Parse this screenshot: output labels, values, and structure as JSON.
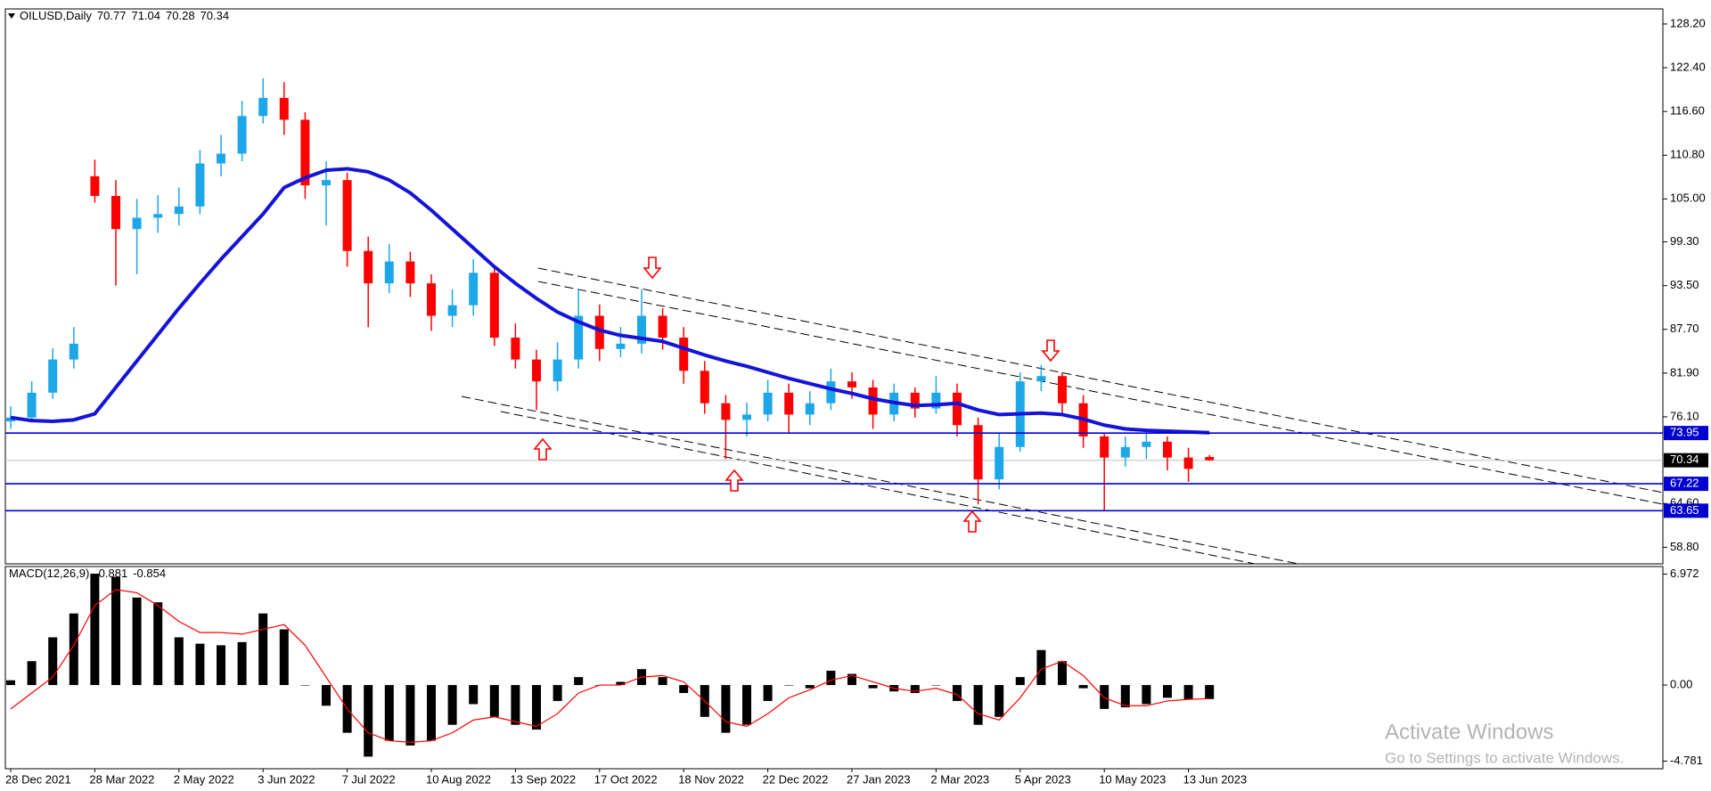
{
  "chart_data": [
    {
      "type": "candlestick",
      "title": "OILUSD,Daily",
      "categories": [
        "28 Dec 2021",
        null,
        null,
        null,
        "28 Mar 2022",
        null,
        null,
        null,
        "2 May 2022",
        null,
        null,
        null,
        "3 Jun 2022",
        null,
        null,
        null,
        "7 Jul 2022",
        null,
        null,
        null,
        "10 Aug 2022",
        null,
        null,
        null,
        "13 Sep 2022",
        null,
        null,
        null,
        "17 Oct 2022",
        null,
        null,
        null,
        "18 Nov 2022",
        null,
        null,
        null,
        "22 Dec 2022",
        null,
        null,
        null,
        "27 Jan 2023",
        null,
        null,
        null,
        "2 Mar 2023",
        null,
        null,
        null,
        "5 Apr 2023",
        null,
        null,
        null,
        "10 May 2023",
        null,
        null,
        null,
        "13 Jun 2023",
        null
      ],
      "open": [
        75.5,
        76.0,
        79.3,
        83.7,
        108.0,
        105.4,
        101.0,
        102.5,
        103.0,
        104.0,
        109.7,
        111.0,
        116.0,
        118.4,
        115.5,
        106.8,
        107.5,
        98.1,
        93.8,
        96.7,
        93.8,
        89.5,
        90.9,
        95.2,
        86.6,
        83.7,
        80.8,
        83.7,
        89.5,
        85.1,
        85.8,
        89.5,
        86.6,
        82.2,
        77.9,
        75.7,
        76.4,
        79.3,
        76.4,
        77.9,
        80.8,
        80.0,
        76.4,
        79.3,
        77.2,
        79.3,
        75.0,
        67.8,
        72.1,
        80.8,
        81.5,
        77.9,
        73.5,
        70.7,
        72.1,
        72.8,
        70.7,
        70.77
      ],
      "high": [
        77.5,
        80.8,
        85.2,
        88.0,
        110.2,
        107.5,
        105.0,
        105.5,
        106.5,
        111.5,
        113.5,
        118.0,
        121.0,
        120.5,
        116.5,
        110.0,
        108.5,
        100.0,
        99.0,
        98.0,
        95.0,
        93.0,
        97.0,
        96.0,
        88.5,
        85.0,
        86.0,
        93.0,
        91.0,
        88.0,
        93.0,
        90.5,
        88.0,
        83.5,
        79.0,
        78.0,
        81.0,
        80.5,
        79.5,
        82.5,
        82.0,
        81.0,
        80.5,
        80.0,
        81.5,
        80.5,
        76.0,
        74.0,
        82.0,
        83.0,
        82.0,
        79.0,
        74.0,
        73.5,
        74.0,
        73.5,
        72.0,
        71.04
      ],
      "low": [
        74.5,
        75.5,
        78.5,
        82.5,
        104.5,
        93.5,
        95.0,
        100.5,
        101.5,
        103.0,
        108.0,
        110.0,
        115.0,
        113.5,
        105.0,
        101.5,
        96.0,
        88.0,
        92.5,
        92.0,
        87.5,
        88.0,
        89.5,
        85.5,
        82.5,
        77.0,
        79.5,
        82.5,
        83.5,
        84.0,
        84.5,
        85.0,
        80.5,
        76.5,
        70.5,
        73.5,
        75.5,
        74.0,
        75.0,
        77.0,
        78.5,
        74.5,
        75.5,
        76.0,
        76.5,
        73.5,
        64.5,
        66.5,
        71.5,
        79.5,
        76.5,
        72.0,
        63.7,
        69.5,
        70.5,
        69.0,
        67.5,
        70.28
      ],
      "close": [
        76.0,
        79.3,
        83.7,
        85.8,
        105.4,
        101.0,
        102.5,
        103.0,
        104.0,
        109.7,
        111.0,
        116.0,
        118.4,
        115.5,
        106.8,
        107.5,
        98.1,
        93.8,
        96.7,
        93.8,
        89.5,
        90.9,
        95.2,
        86.6,
        83.7,
        80.8,
        83.7,
        89.5,
        85.1,
        85.8,
        89.5,
        86.6,
        82.2,
        77.9,
        75.7,
        76.4,
        79.3,
        76.4,
        77.9,
        80.8,
        80.0,
        76.4,
        79.3,
        77.2,
        79.3,
        75.0,
        67.8,
        72.1,
        80.8,
        81.5,
        77.9,
        73.5,
        70.7,
        72.1,
        72.8,
        70.7,
        69.2,
        70.34
      ],
      "up_color": "#1ea7e8",
      "down_color": "#ff0000",
      "ma": {
        "color": "#1414d8",
        "values": [
          76.0,
          75.6,
          75.5,
          75.7,
          76.5,
          80.0,
          83.5,
          87.0,
          90.5,
          93.8,
          97.0,
          100.0,
          103.0,
          106.5,
          107.8,
          108.8,
          109.0,
          108.6,
          107.5,
          105.8,
          103.5,
          101.0,
          98.5,
          96.0,
          93.8,
          91.8,
          90.0,
          88.7,
          87.6,
          86.9,
          86.5,
          86.1,
          85.2,
          84.3,
          83.5,
          82.8,
          82.0,
          81.2,
          80.5,
          79.8,
          79.2,
          78.5,
          78.0,
          77.6,
          77.7,
          77.9,
          77.0,
          76.4,
          76.5,
          76.6,
          76.4,
          75.8,
          75.0,
          74.5,
          74.3,
          74.2,
          74.1,
          74.0
        ]
      },
      "hlines": [
        73.95,
        67.22,
        63.65
      ],
      "hline_color": "#0000d0",
      "ylim": [
        56.6,
        130.2
      ],
      "yticks": [
        {
          "value": 128.2,
          "label": "128.20"
        },
        {
          "value": 122.4,
          "label": "122.40"
        },
        {
          "value": 116.6,
          "label": "116.60"
        },
        {
          "value": 110.8,
          "label": "110.80"
        },
        {
          "value": 105,
          "label": "105.00"
        },
        {
          "value": 99.3,
          "label": "99.30"
        },
        {
          "value": 93.5,
          "label": "93.50"
        },
        {
          "value": 87.7,
          "label": "87.70"
        },
        {
          "value": 81.9,
          "label": "81.90"
        },
        {
          "value": 76.1,
          "label": "76.10"
        },
        {
          "value": 64.6,
          "label": "64.60"
        },
        {
          "value": 58.8,
          "label": "58.80"
        }
      ]
    },
    {
      "type": "macd",
      "title": "MACD(12,26,9)",
      "values": [
        0.3,
        1.5,
        3.0,
        4.5,
        7.0,
        6.8,
        5.5,
        5.2,
        3.0,
        2.6,
        2.5,
        2.7,
        4.5,
        3.5,
        0.0,
        -1.3,
        -3.0,
        -4.5,
        -3.5,
        -3.8,
        -3.5,
        -2.5,
        -1.2,
        -2.0,
        -2.5,
        -2.8,
        -1.0,
        0.5,
        0.0,
        0.2,
        1.0,
        0.5,
        -0.5,
        -2.0,
        -3.0,
        -2.5,
        -1.0,
        0.0,
        -0.2,
        0.9,
        0.7,
        -0.2,
        -0.4,
        -0.5,
        0.0,
        -1.0,
        -2.5,
        -2.0,
        0.5,
        2.2,
        1.5,
        -0.2,
        -1.5,
        -1.4,
        -1.2,
        -0.8,
        -0.9,
        -0.881
      ],
      "color": "#000000",
      "signal": {
        "color": "#ff0000",
        "values": [
          -1.5,
          -0.5,
          0.5,
          2.5,
          5.0,
          6.0,
          5.8,
          5.0,
          4.0,
          3.3,
          3.3,
          3.2,
          3.5,
          3.8,
          2.5,
          0.5,
          -1.5,
          -3.0,
          -3.5,
          -3.6,
          -3.5,
          -3.0,
          -2.2,
          -2.0,
          -2.3,
          -2.6,
          -1.8,
          -0.5,
          0.0,
          0.0,
          0.5,
          0.6,
          0.2,
          -1.0,
          -2.3,
          -2.6,
          -1.8,
          -0.8,
          -0.3,
          0.3,
          0.6,
          0.2,
          -0.2,
          -0.4,
          -0.2,
          -0.6,
          -1.8,
          -2.2,
          -0.8,
          1.0,
          1.5,
          0.6,
          -0.8,
          -1.3,
          -1.3,
          -1.0,
          -0.9,
          -0.854
        ]
      },
      "ylim": [
        -5.26,
        7.45
      ],
      "yticks": [
        6.972,
        {
          "value": 0,
          "label": "0.00"
        },
        -4.781
      ]
    }
  ],
  "watermark": {
    "title": "Activate Windows",
    "subtitle": "Go to Settings to activate Windows."
  }
}
